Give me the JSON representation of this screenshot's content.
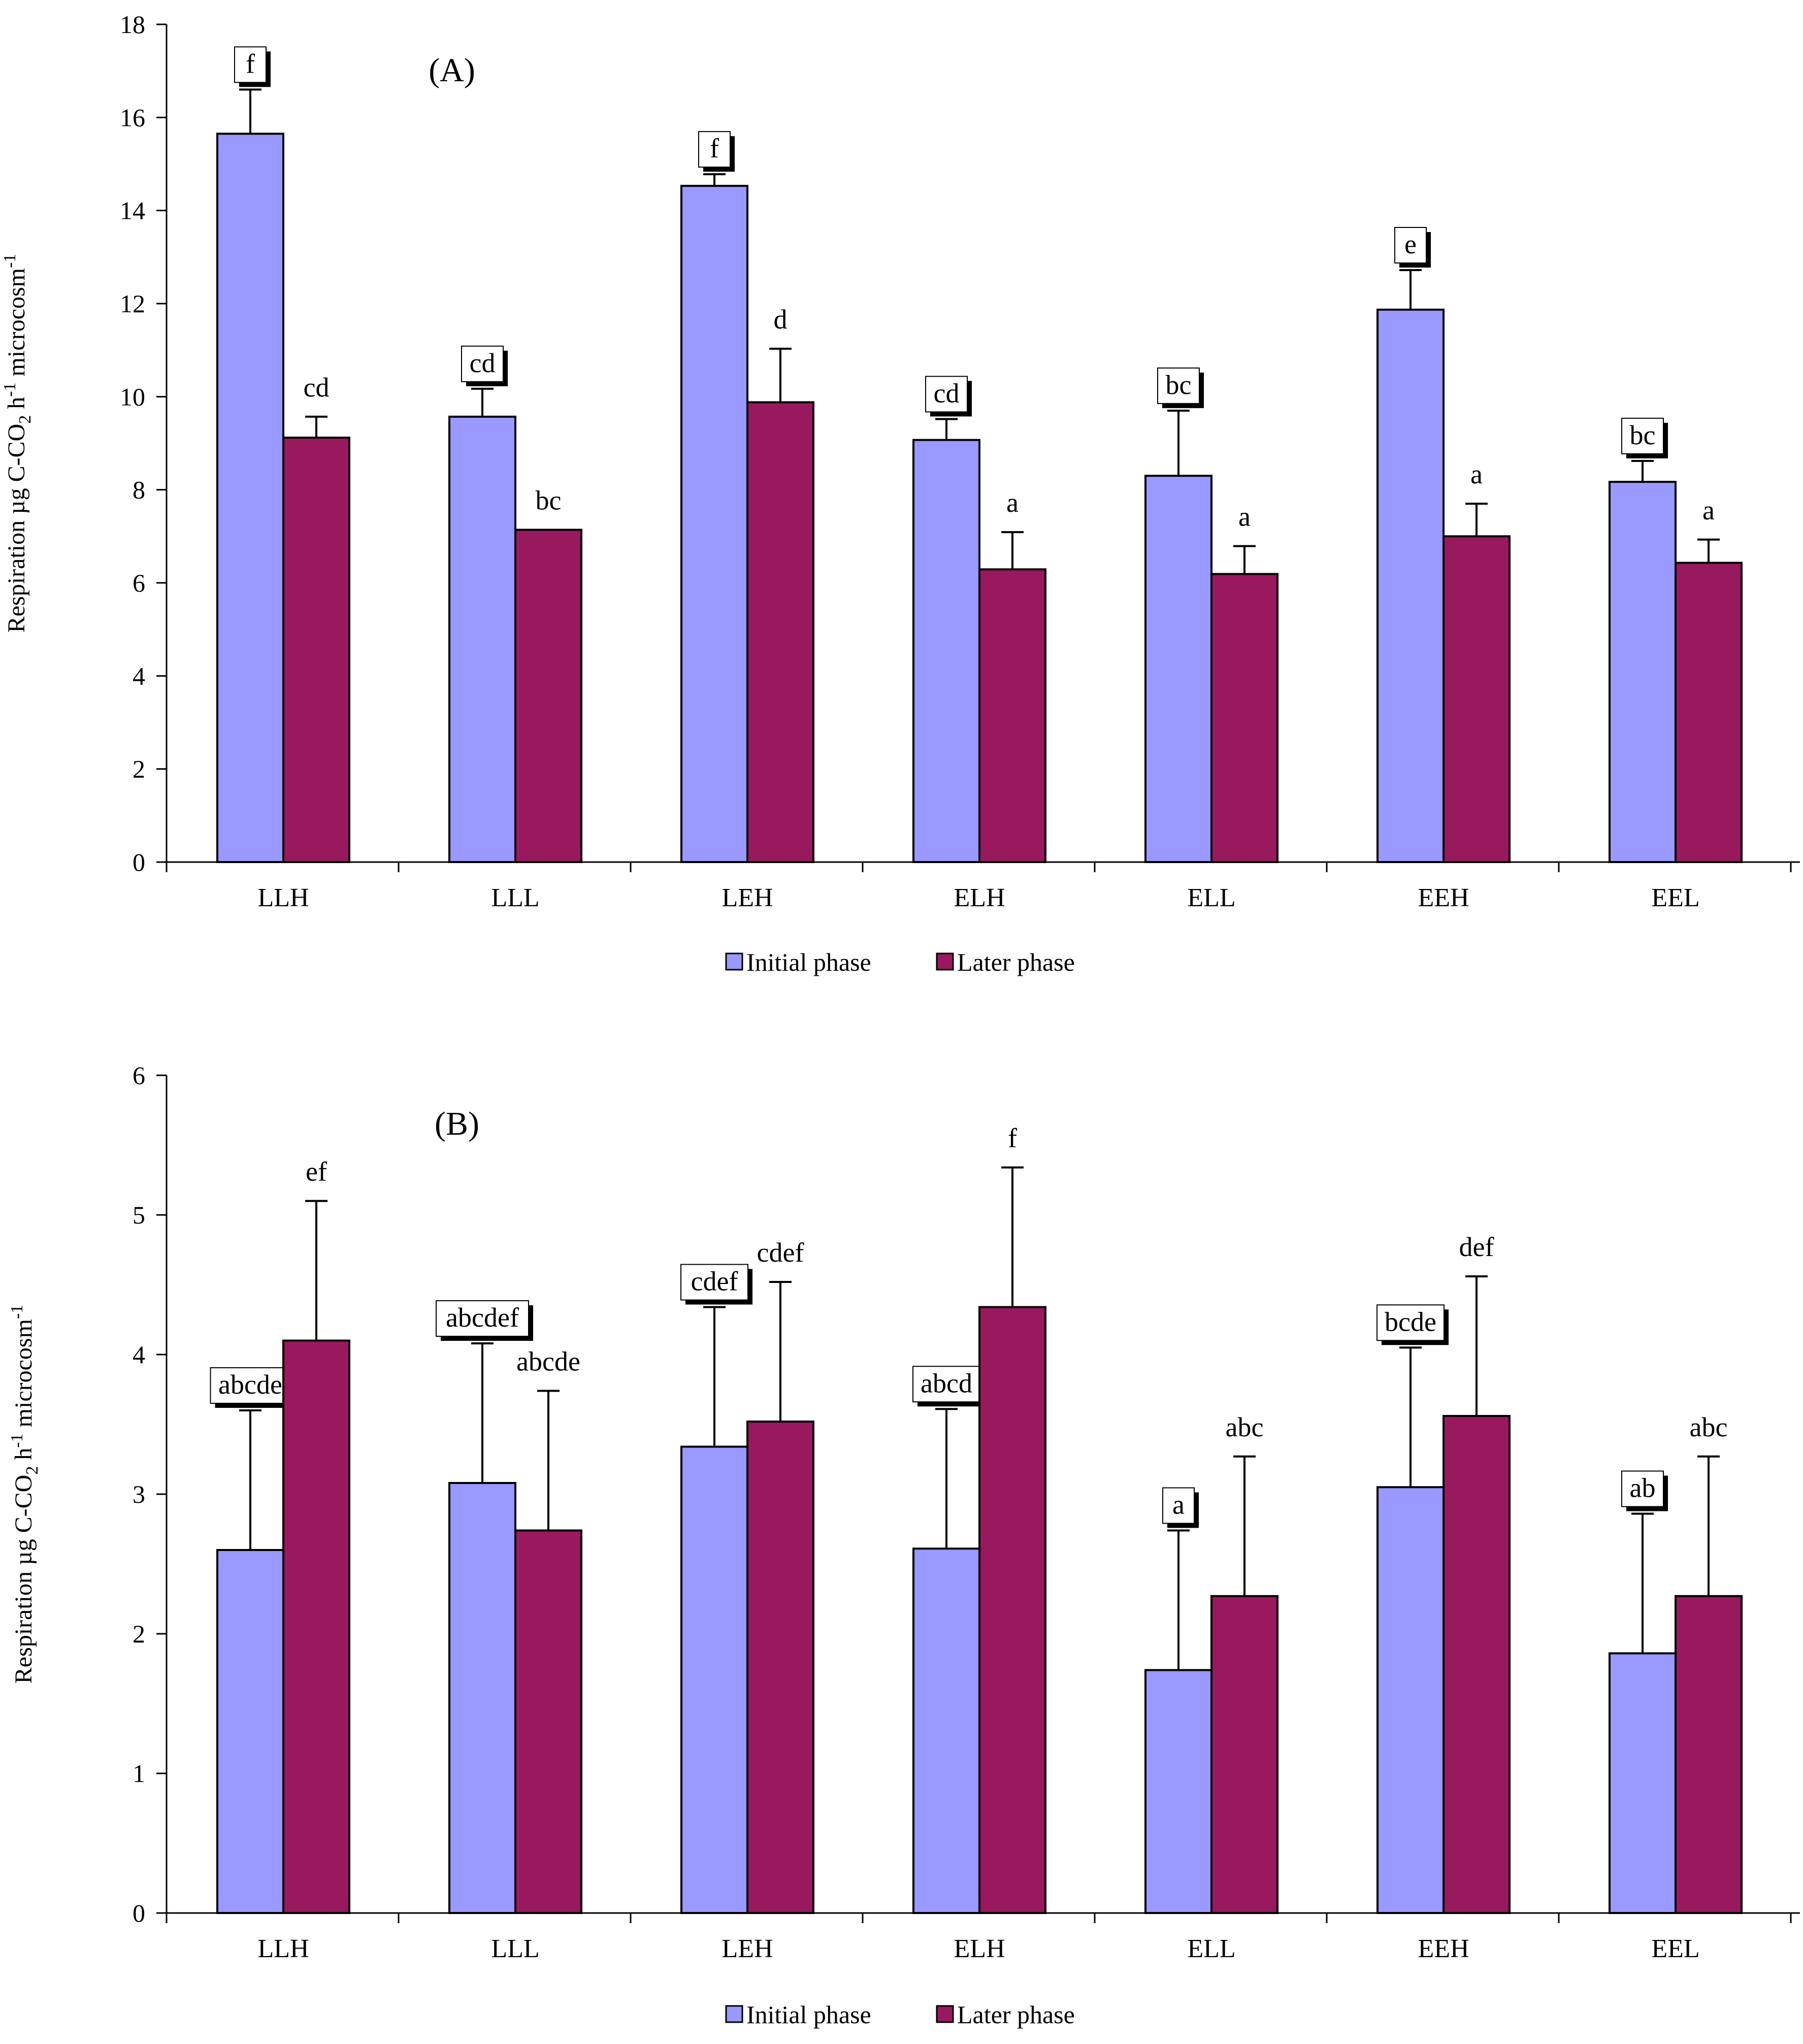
{
  "colors": {
    "initial": "#9999ff",
    "later": "#99195e",
    "axis": "#000000"
  },
  "chart_data": [
    {
      "type": "bar",
      "title": "(A)",
      "ylabel": "Respiration µg C-CO2 h-1 microcosm-1",
      "ylabel_parts": {
        "a": "Respiration µg C-CO",
        "sub": "2",
        "b": " h",
        "sup1": "-1",
        "c": " microcosm",
        "sup2": "-1"
      },
      "ylim": [
        0,
        18
      ],
      "yticks": [
        0,
        2,
        4,
        6,
        8,
        10,
        12,
        14,
        16,
        18
      ],
      "categories": [
        "LLH",
        "LLL",
        "LEH",
        "ELH",
        "ELL",
        "EEH",
        "EEL"
      ],
      "series": [
        {
          "name": "Initial phase",
          "values": [
            15.65,
            9.57,
            14.53,
            9.07,
            8.3,
            11.87,
            8.17
          ],
          "errors": [
            0.95,
            0.6,
            0.25,
            0.45,
            1.4,
            0.85,
            0.45
          ],
          "letters": [
            "f",
            "cd",
            "f",
            "cd",
            "bc",
            "e",
            "bc"
          ]
        },
        {
          "name": "Later phase",
          "values": [
            9.12,
            7.14,
            9.88,
            6.29,
            6.19,
            7.0,
            6.43
          ],
          "errors": [
            0.45,
            0.0,
            1.15,
            0.8,
            0.6,
            0.7,
            0.5
          ],
          "letters": [
            "cd",
            "bc",
            "d",
            "a",
            "a",
            "a",
            "a"
          ]
        }
      ],
      "legend": [
        "Initial phase",
        "Later phase"
      ]
    },
    {
      "type": "bar",
      "title": "(B)",
      "ylabel": "Respiration µg C-CO2 h-1 microcosm-1",
      "ylabel_parts": {
        "a": "Respiration µg C-CO",
        "sub": "2",
        "b": " h",
        "sup1": "-1",
        "c": " microcosm",
        "sup2": "-1"
      },
      "ylim": [
        0,
        6
      ],
      "yticks": [
        0,
        1,
        2,
        3,
        4,
        5,
        6
      ],
      "categories": [
        "LLH",
        "LLL",
        "LEH",
        "ELH",
        "ELL",
        "EEH",
        "EEL"
      ],
      "series": [
        {
          "name": "Initial phase",
          "values": [
            2.6,
            3.08,
            3.34,
            2.61,
            1.74,
            3.05,
            1.86
          ],
          "errors": [
            1.0,
            1.0,
            1.0,
            1.0,
            1.0,
            1.0,
            1.0
          ],
          "letters": [
            "abcde",
            "abcdef",
            "cdef",
            "abcd",
            "a",
            "bcde",
            "ab"
          ]
        },
        {
          "name": "Later phase",
          "values": [
            4.1,
            2.74,
            3.52,
            4.34,
            2.27,
            3.56,
            2.27
          ],
          "errors": [
            1.0,
            1.0,
            1.0,
            1.0,
            1.0,
            1.0,
            1.0
          ],
          "letters": [
            "ef",
            "abcde",
            "cdef",
            "f",
            "abc",
            "def",
            "abc"
          ]
        }
      ],
      "legend": [
        "Initial phase",
        "Later phase"
      ]
    }
  ]
}
